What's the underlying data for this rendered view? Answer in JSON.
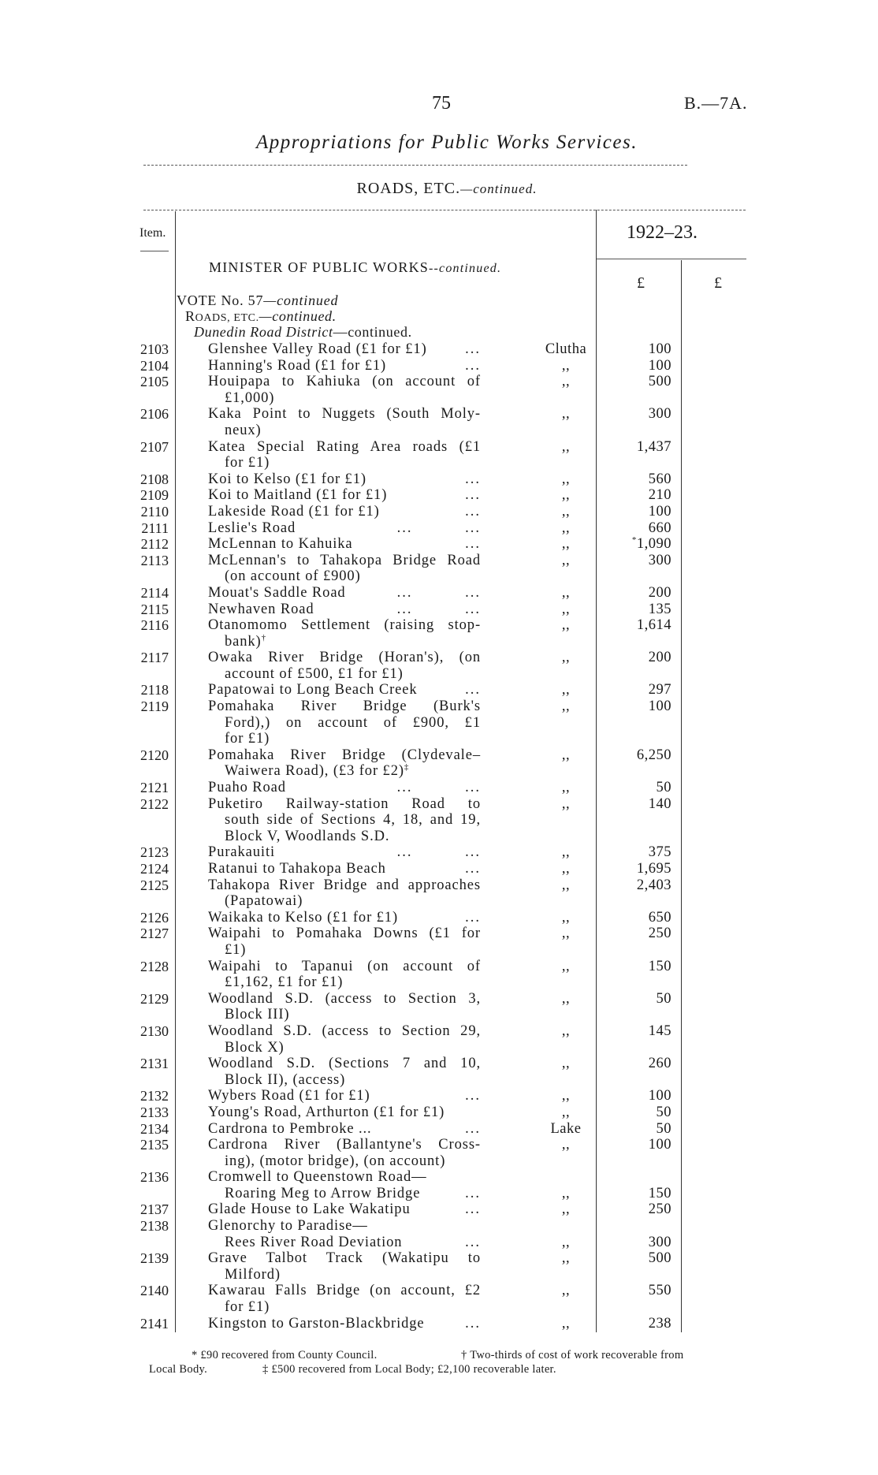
{
  "header": {
    "page_number": "75",
    "reference": "B.—7A.",
    "title": "Appropriations for Public Works Services.",
    "section": "ROADS, ETC.",
    "section_suffix": "—continued."
  },
  "table_header": {
    "item": "Item.",
    "year": "1922–23.",
    "currency_1": "£",
    "currency_2": "£"
  },
  "headings": {
    "minister": "MINISTER OF PUBLIC WORKS",
    "minister_suffix": "--continued.",
    "vote": "VOTE No. 57",
    "vote_suffix": "—continued",
    "roads_r": "R",
    "roads_rest": "OADS, ETC.",
    "roads_suffix": "—continued.",
    "district": "Dunedin Road District",
    "district_suffix": "—continued."
  },
  "rows": [
    {
      "item": "2103",
      "lines": [
        "Glenshee Valley Road (£1 for £1)"
      ],
      "leader": "...",
      "location": "Clutha",
      "amount": "100"
    },
    {
      "item": "2104",
      "lines": [
        "Hanning's Road (£1 for £1)"
      ],
      "leader": "...",
      "location": ",,",
      "amount": "100"
    },
    {
      "item": "2105",
      "lines": [
        "Houipapa to Kahiuka (on account of",
        "£1,000)"
      ],
      "leader": "",
      "location": ",,",
      "amount": "500"
    },
    {
      "item": "2106",
      "lines": [
        "Kaka Point to Nuggets (South Moly-",
        "neux)"
      ],
      "leader": "",
      "location": ",,",
      "amount": "300"
    },
    {
      "item": "2107",
      "lines": [
        "Katea Special Rating Area roads (£1",
        "for £1)"
      ],
      "leader": "",
      "location": ",,",
      "amount": "1,437"
    },
    {
      "item": "2108",
      "lines": [
        "Koi to Kelso (£1 for £1)"
      ],
      "leader": "...",
      "location": ",,",
      "amount": "560"
    },
    {
      "item": "2109",
      "lines": [
        "Koi to Maitland (£1 for £1)"
      ],
      "leader": "...",
      "location": ",,",
      "amount": "210"
    },
    {
      "item": "2110",
      "lines": [
        "Lakeside Road (£1 for £1)"
      ],
      "leader": "...",
      "location": ",,",
      "amount": "100"
    },
    {
      "item": "2111",
      "lines": [
        "Leslie's Road"
      ],
      "leader": "... ...",
      "location": ",,",
      "amount": "660"
    },
    {
      "item": "2112",
      "lines": [
        "McLennan to Kahuika"
      ],
      "leader": "...",
      "location": ",,",
      "amount": "1,090",
      "amount_mark": "*"
    },
    {
      "item": "2113",
      "lines": [
        "McLennan's to Tahakopa Bridge Road",
        "(on account of £900)"
      ],
      "leader": "",
      "location": ",,",
      "amount": "300"
    },
    {
      "item": "2114",
      "lines": [
        "Mouat's Saddle Road"
      ],
      "leader": "... ...",
      "location": ",,",
      "amount": "200"
    },
    {
      "item": "2115",
      "lines": [
        "Newhaven Road"
      ],
      "leader": "... ...",
      "location": ",,",
      "amount": "135"
    },
    {
      "item": "2116",
      "lines": [
        "Otanomomo Settlement (raising stop-",
        "bank)"
      ],
      "line_mark": "†",
      "leader": "",
      "location": ",,",
      "amount": "1,614"
    },
    {
      "item": "2117",
      "lines": [
        "Owaka River Bridge (Horan's), (on",
        "account of £500, £1 for £1)"
      ],
      "leader": "",
      "location": ",,",
      "amount": "200"
    },
    {
      "item": "2118",
      "lines": [
        "Papatowai to Long Beach Creek"
      ],
      "leader": "...",
      "location": ",,",
      "amount": "297"
    },
    {
      "item": "2119",
      "lines": [
        "Pomahaka River Bridge (Burk's",
        "Ford),) on account of £900, £1",
        "for £1)"
      ],
      "leader": "",
      "location": ",,",
      "amount": "100"
    },
    {
      "item": "2120",
      "lines": [
        "Pomahaka River Bridge (Clydevale–",
        "Waiwera Road), (£3 for £2)"
      ],
      "line_mark": "‡",
      "leader": "",
      "location": ",,",
      "amount": "6,250"
    },
    {
      "item": "2121",
      "lines": [
        "Puaho Road"
      ],
      "leader": "... ...",
      "location": ",,",
      "amount": "50"
    },
    {
      "item": "2122",
      "lines": [
        "Puketiro Railway-station Road to",
        "south side of Sections 4, 18, and 19,",
        "Block V, Woodlands S.D."
      ],
      "leader": "",
      "location": ",,",
      "amount": "140"
    },
    {
      "item": "2123",
      "lines": [
        "Purakauiti"
      ],
      "leader": "... ...",
      "location": ",,",
      "amount": "375"
    },
    {
      "item": "2124",
      "lines": [
        "Ratanui to Tahakopa Beach"
      ],
      "leader": "...",
      "location": ",,",
      "amount": "1,695"
    },
    {
      "item": "2125",
      "lines": [
        "Tahakopa River Bridge and approaches",
        "(Papatowai)"
      ],
      "leader": "",
      "location": ",,",
      "amount": "2,403"
    },
    {
      "item": "2126",
      "lines": [
        "Waikaka to Kelso (£1 for £1)"
      ],
      "leader": "...",
      "location": ",,",
      "amount": "650"
    },
    {
      "item": "2127",
      "lines": [
        "Waipahi to Pomahaka Downs (£1 for",
        "£1)"
      ],
      "leader": "",
      "location": ",,",
      "amount": "250"
    },
    {
      "item": "2128",
      "lines": [
        "Waipahi to Tapanui (on account of",
        "£1,162, £1 for £1)"
      ],
      "leader": "",
      "location": ",,",
      "amount": "150"
    },
    {
      "item": "2129",
      "lines": [
        "Woodland S.D. (access to Section 3,",
        "Block III)"
      ],
      "leader": "",
      "location": ",,",
      "amount": "50"
    },
    {
      "item": "2130",
      "lines": [
        "Woodland S.D. (access to Section 29,",
        "Block X)"
      ],
      "leader": "",
      "location": ",,",
      "amount": "145"
    },
    {
      "item": "2131",
      "lines": [
        "Woodland S.D. (Sections 7 and 10,",
        "Block II), (access)"
      ],
      "leader": "",
      "location": ",,",
      "amount": "260"
    },
    {
      "item": "2132",
      "lines": [
        "Wybers Road (£1 for £1)"
      ],
      "leader": "...",
      "location": ",,",
      "amount": "100"
    },
    {
      "item": "2133",
      "lines": [
        "Young's Road, Arthurton (£1 for £1)"
      ],
      "leader": "",
      "location": ",,",
      "amount": "50"
    },
    {
      "item": "2134",
      "lines": [
        "Cardrona to Pembroke ..."
      ],
      "leader": "...",
      "location": "Lake",
      "amount": "50"
    },
    {
      "item": "2135",
      "lines": [
        "Cardrona River (Ballantyne's Cross-",
        "ing), (motor bridge), (on account)"
      ],
      "leader": "",
      "location": ",,",
      "amount": "100"
    },
    {
      "item": "2136",
      "lines": [
        "Cromwell to Queenstown Road—",
        "Roaring Meg to Arrow Bridge"
      ],
      "leader": "...",
      "location": ",,",
      "amount": "150",
      "amount_on_last": true
    },
    {
      "item": "2137",
      "lines": [
        "Glade House to Lake Wakatipu"
      ],
      "leader": "...",
      "location": ",,",
      "amount": "250"
    },
    {
      "item": "2138",
      "lines": [
        "Glenorchy to Paradise—",
        "Rees River Road Deviation"
      ],
      "leader": "...",
      "location": ",,",
      "amount": "300",
      "amount_on_last": true
    },
    {
      "item": "2139",
      "lines": [
        "Grave Talbot Track (Wakatipu to",
        "Milford)"
      ],
      "leader": "",
      "location": ",,",
      "amount": "500"
    },
    {
      "item": "2140",
      "lines": [
        "Kawarau Falls Bridge (on account, £2",
        "for £1)"
      ],
      "leader": "",
      "location": ",,",
      "amount": "550"
    },
    {
      "item": "2141",
      "lines": [
        "Kingston to Garston-Blackbridge"
      ],
      "leader": "...",
      "location": ",,",
      "amount": "238"
    }
  ],
  "footnotes": {
    "line1_a": "* £90 recovered from County Council.",
    "line1_b": "† Two-thirds of cost of work recoverable from",
    "line2_a": "Local Body.",
    "line2_b": "‡ £500 recovered from Local Body; £2,100 recoverable later."
  }
}
